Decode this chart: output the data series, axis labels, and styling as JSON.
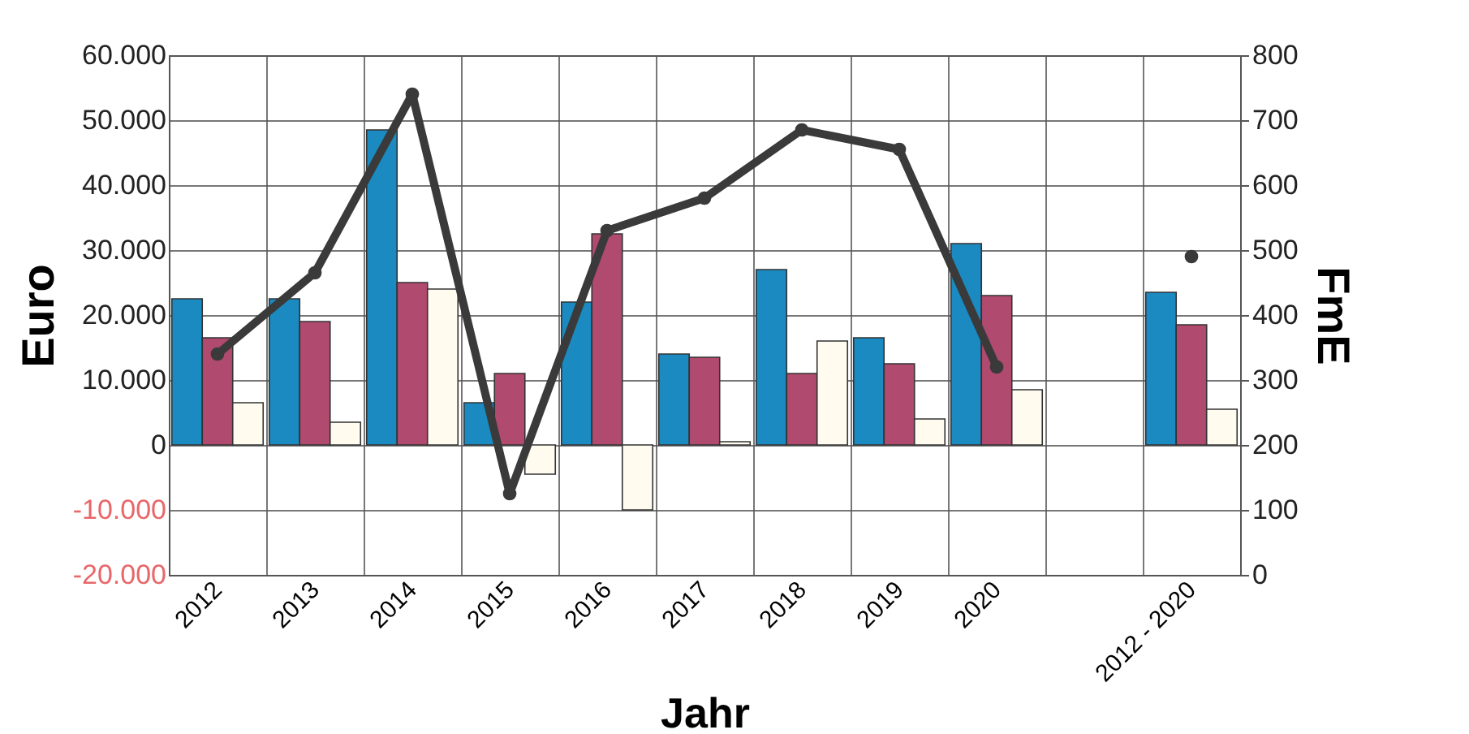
{
  "chart_data": {
    "type": "bar",
    "xlabel": "Jahr",
    "ylabel": "Euro",
    "y2label": "FmE",
    "categories": [
      "2012",
      "2013",
      "2014",
      "2015",
      "2016",
      "2017",
      "2018",
      "2019",
      "2020",
      null,
      "2012 - 2020"
    ],
    "series": [
      {
        "color": "#1a8ac0",
        "values": [
          22500,
          22500,
          48500,
          6500,
          22000,
          14000,
          27000,
          16500,
          31000,
          null,
          23500
        ]
      },
      {
        "color": "#b04a6e",
        "values": [
          16500,
          19000,
          25000,
          11000,
          32500,
          13500,
          11000,
          12500,
          23000,
          null,
          18500
        ]
      },
      {
        "color": "#fffbee",
        "values": [
          6500,
          3500,
          24000,
          -4500,
          -10000,
          500,
          16000,
          4000,
          8500,
          null,
          5500
        ]
      },
      {
        "type": "line",
        "axis": "y2",
        "color": "#3a3a3a",
        "marker": "circle",
        "values": [
          340,
          465,
          740,
          125,
          530,
          580,
          685,
          655,
          320,
          null,
          490
        ]
      }
    ],
    "ylim": [
      -20000,
      60000
    ],
    "yticks": [
      {
        "value": -20000,
        "label": "-20.000"
      },
      {
        "value": -10000,
        "label": "-10.000"
      },
      {
        "value": 0,
        "label": "0"
      },
      {
        "value": 10000,
        "label": "10.000"
      },
      {
        "value": 20000,
        "label": "20.000"
      },
      {
        "value": 30000,
        "label": "30.000"
      },
      {
        "value": 40000,
        "label": "40.000"
      },
      {
        "value": 50000,
        "label": "50.000"
      },
      {
        "value": 60000,
        "label": "60.000"
      }
    ],
    "y2lim": [
      0,
      800
    ],
    "y2ticks": [
      0,
      100,
      200,
      300,
      400,
      500,
      600,
      700,
      800
    ],
    "grid": true,
    "legend": false
  }
}
